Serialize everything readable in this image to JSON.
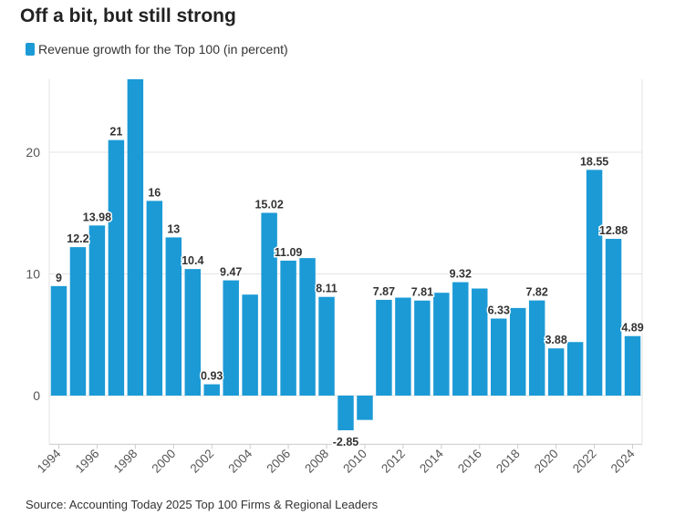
{
  "title": "Off a bit, but still strong",
  "source": "Source: Accounting Today 2025 Top 100 Firms & Regional Leaders",
  "colors": {
    "bar": "#1b9ad6",
    "grid": "#e3e3e3",
    "axis": "#cccccc",
    "text": "#333333"
  },
  "chart_data": {
    "type": "bar",
    "title": "Off a bit, but still strong",
    "xlabel": "",
    "ylabel": "",
    "ylim": [
      -4,
      26
    ],
    "yticks": [
      0,
      10,
      20
    ],
    "grid": true,
    "legend": "top-left",
    "categories": [
      "1994",
      "1995",
      "1996",
      "1997",
      "1998",
      "1999",
      "2000",
      "2001",
      "2002",
      "2003",
      "2004",
      "2005",
      "2006",
      "2007",
      "2008",
      "2009",
      "2010",
      "2011",
      "2012",
      "2013",
      "2014",
      "2015",
      "2016",
      "2017",
      "2018",
      "2019",
      "2020",
      "2021",
      "2022",
      "2023",
      "2024"
    ],
    "xtick_labels": [
      "1994",
      "1996",
      "1998",
      "2000",
      "2002",
      "2004",
      "2006",
      "2008",
      "2010",
      "2012",
      "2014",
      "2016",
      "2018",
      "2020",
      "2022",
      "2024"
    ],
    "series": [
      {
        "name": "Revenue growth for the Top 100 (in percent)",
        "values": [
          9,
          12.2,
          13.98,
          21,
          26,
          16,
          13,
          10.4,
          0.93,
          9.47,
          8.3,
          15.02,
          11.09,
          11.3,
          8.11,
          -2.85,
          -2,
          7.87,
          8.05,
          7.81,
          8.45,
          9.32,
          8.8,
          6.33,
          7.2,
          7.82,
          3.88,
          4.4,
          18.55,
          12.88,
          4.89
        ],
        "labels": [
          "9",
          "12.2",
          "13.98",
          "21",
          "",
          "16",
          "13",
          "10.4",
          "0.93",
          "9.47",
          "",
          "15.02",
          "11.09",
          "",
          "8.11",
          "-2.85",
          "",
          "7.87",
          "",
          "7.81",
          "",
          "9.32",
          "",
          "6.33",
          "",
          "7.82",
          "3.88",
          "",
          "18.55",
          "12.88",
          "4.89"
        ]
      }
    ]
  }
}
